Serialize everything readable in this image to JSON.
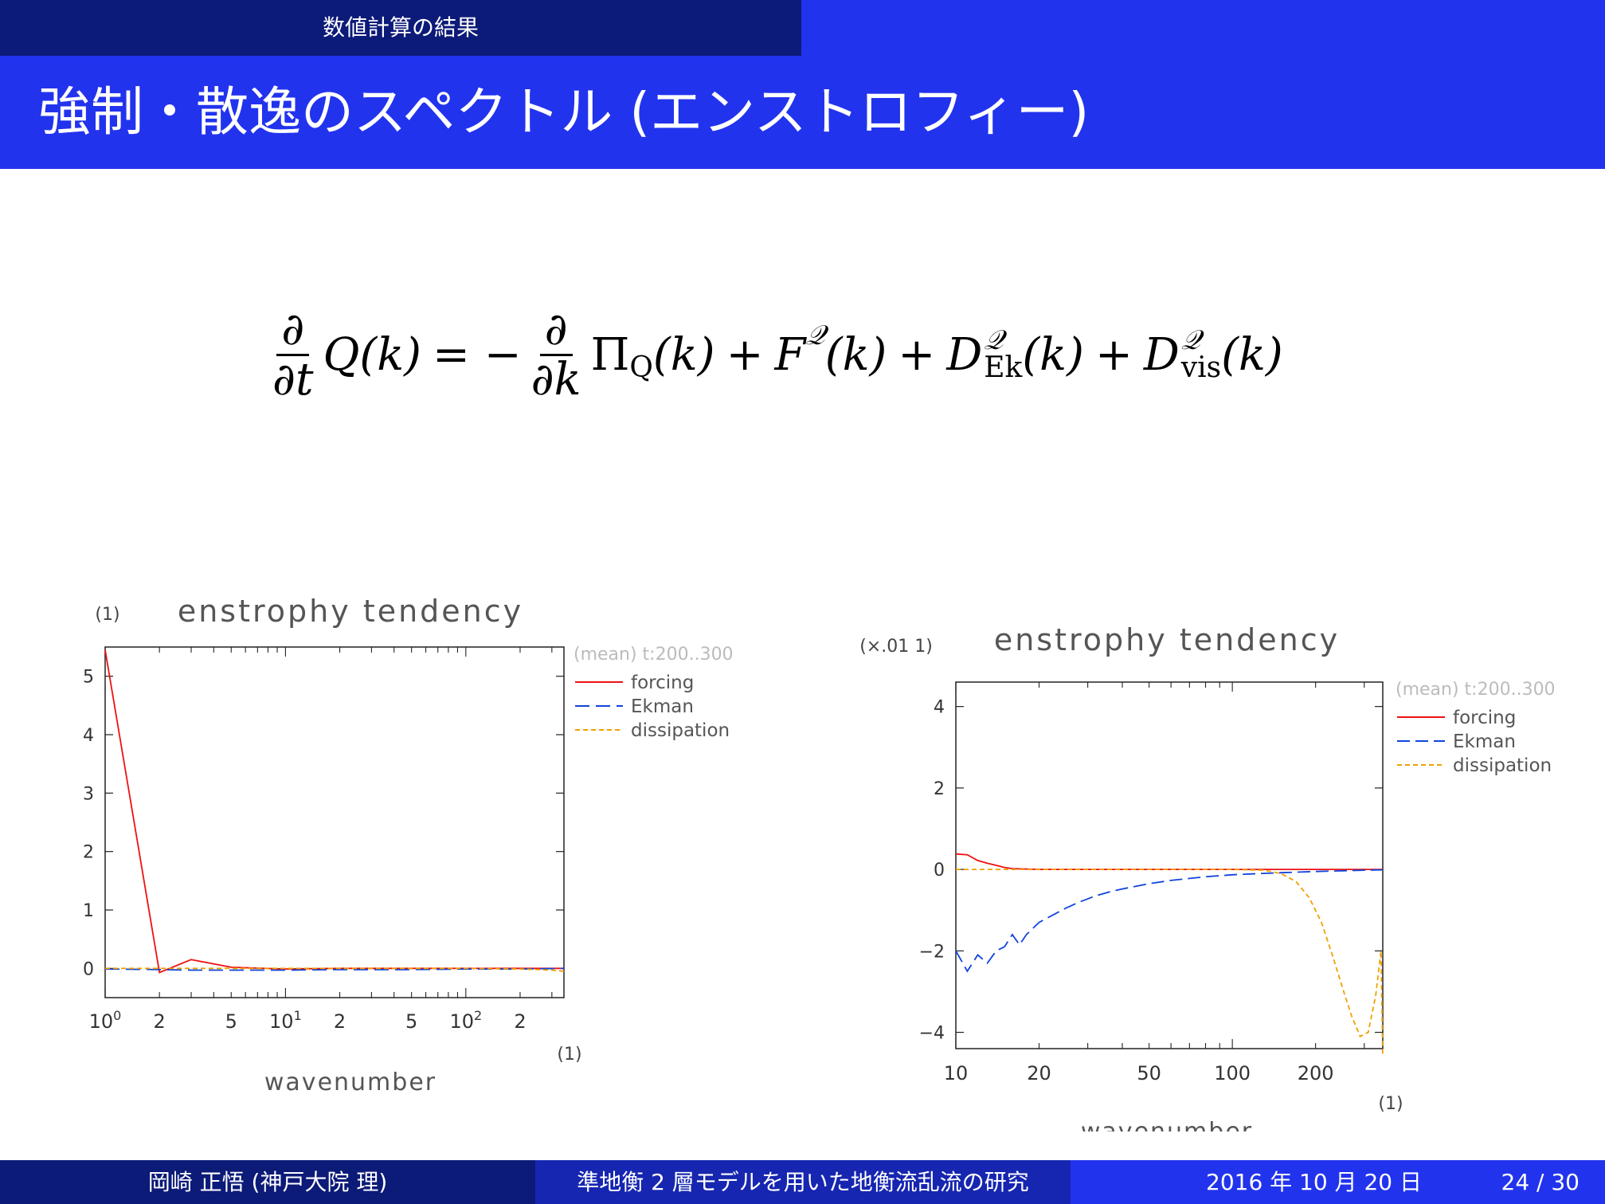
{
  "header": {
    "section": "数値計算の結果"
  },
  "slide": {
    "title": "強制・散逸のスペクトル (エンストロフィー)"
  },
  "equation": {
    "d": "∂",
    "dt": "∂t",
    "dk": "∂k",
    "lhs": "Q(k)",
    "eq": "= −",
    "pi": "Π",
    "pi_sub": "Q",
    "k": "(k)",
    "plus": "+",
    "F": "F",
    "Qscript": "𝒬",
    "D": "D",
    "ek": "Ek",
    "vis": "vis"
  },
  "chart_data": [
    {
      "type": "line",
      "title": "enstrophy tendency",
      "yunit": "(1)",
      "xunit": "(1)",
      "xlabel": "wavenumber",
      "xscale": "log",
      "xlim": [
        1,
        350
      ],
      "ylim": [
        -0.5,
        5.5
      ],
      "yticks": [
        0,
        1,
        2,
        3,
        4,
        5
      ],
      "xtick_labels": [
        {
          "x": 1,
          "base": "10",
          "exp": "0"
        },
        {
          "x": 2,
          "base": "2",
          "exp": ""
        },
        {
          "x": 5,
          "base": "5",
          "exp": ""
        },
        {
          "x": 10,
          "base": "10",
          "exp": "1"
        },
        {
          "x": 20,
          "base": "2",
          "exp": ""
        },
        {
          "x": 50,
          "base": "5",
          "exp": ""
        },
        {
          "x": 100,
          "base": "10",
          "exp": "2"
        },
        {
          "x": 200,
          "base": "2",
          "exp": ""
        }
      ],
      "legend": {
        "placement": "right",
        "header": "(mean) t:200..300",
        "entries": [
          "forcing",
          "Ekman",
          "dissipation"
        ]
      },
      "series": [
        {
          "name": "forcing",
          "color": "#ee1111",
          "dash": "",
          "x": [
            1,
            2,
            3,
            5,
            10,
            20,
            50,
            100,
            200,
            350
          ],
          "y": [
            5.45,
            -0.07,
            0.15,
            0.02,
            -0.01,
            0.0,
            0.0,
            0.0,
            0.0,
            0.0
          ]
        },
        {
          "name": "Ekman",
          "color": "#1144dd",
          "dash": "18,8",
          "x": [
            1,
            2,
            3,
            5,
            10,
            20,
            50,
            100,
            200,
            350
          ],
          "y": [
            -0.01,
            -0.02,
            -0.03,
            -0.03,
            -0.03,
            -0.02,
            -0.02,
            -0.01,
            -0.01,
            0.0
          ]
        },
        {
          "name": "dissipation",
          "color": "#f0a000",
          "dash": "6,4",
          "x": [
            1,
            10,
            100,
            200,
            300,
            350
          ],
          "y": [
            0.0,
            0.0,
            0.0,
            -0.01,
            -0.03,
            -0.05
          ]
        }
      ]
    },
    {
      "type": "line",
      "title": "enstrophy tendency",
      "yunit": "(×.01 1)",
      "xunit": "(1)",
      "xlabel": "wavenumber",
      "xscale": "log",
      "xlim": [
        10,
        350
      ],
      "ylim": [
        -4.4,
        4.6
      ],
      "yticks": [
        -4,
        -2,
        0,
        2,
        4
      ],
      "ytick_labels": [
        "−4",
        "−2",
        "0",
        "2",
        "4"
      ],
      "xtick_labels": [
        {
          "x": 10,
          "base": "10",
          "exp": ""
        },
        {
          "x": 20,
          "base": "20",
          "exp": ""
        },
        {
          "x": 50,
          "base": "50",
          "exp": ""
        },
        {
          "x": 100,
          "base": "100",
          "exp": ""
        },
        {
          "x": 200,
          "base": "200",
          "exp": ""
        }
      ],
      "legend": {
        "placement": "right",
        "header": "(mean) t:200..300",
        "entries": [
          "forcing",
          "Ekman",
          "dissipation"
        ]
      },
      "series": [
        {
          "name": "forcing",
          "color": "#ee1111",
          "dash": "",
          "x": [
            10,
            11,
            12,
            13,
            14,
            15,
            16,
            18,
            20,
            30,
            50,
            100,
            200,
            350
          ],
          "y": [
            0.38,
            0.36,
            0.22,
            0.15,
            0.1,
            0.05,
            0.02,
            0.01,
            0.0,
            0.0,
            0.0,
            0.0,
            0.0,
            0.0
          ]
        },
        {
          "name": "Ekman",
          "color": "#1144dd",
          "dash": "16,7",
          "x": [
            10,
            11,
            12,
            13,
            14,
            15,
            16,
            17,
            18,
            20,
            22,
            25,
            28,
            32,
            36,
            40,
            50,
            60,
            80,
            100,
            150,
            200,
            300,
            350
          ],
          "y": [
            -2.0,
            -2.5,
            -2.1,
            -2.3,
            -2.0,
            -1.9,
            -1.6,
            -1.85,
            -1.6,
            -1.3,
            -1.15,
            -0.95,
            -0.8,
            -0.65,
            -0.55,
            -0.48,
            -0.35,
            -0.27,
            -0.18,
            -0.13,
            -0.08,
            -0.05,
            -0.02,
            -0.01
          ]
        },
        {
          "name": "dissipation",
          "color": "#f0a000",
          "dash": "6,4",
          "x": [
            10,
            50,
            100,
            130,
            150,
            170,
            190,
            210,
            230,
            250,
            270,
            290,
            310,
            330,
            345,
            350
          ],
          "y": [
            0.0,
            0.0,
            0.0,
            -0.02,
            -0.1,
            -0.3,
            -0.7,
            -1.3,
            -2.1,
            -2.9,
            -3.6,
            -4.1,
            -4.0,
            -3.1,
            -2.0,
            -4.6
          ]
        }
      ]
    }
  ],
  "footer": {
    "author": "岡崎 正悟 (神戸大院 理)",
    "talk": "準地衡 2 層モデルを用いた地衡流乱流の研究",
    "date": "2016 年 10 月 20 日",
    "page": "24 / 30"
  }
}
